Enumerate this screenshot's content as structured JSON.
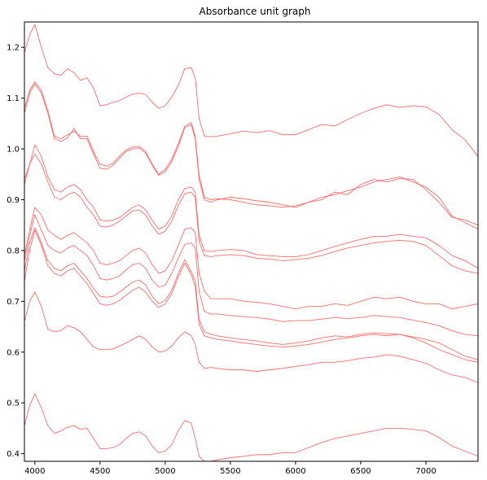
{
  "chart_data": {
    "type": "line",
    "title": "Absorbance unit graph",
    "xlabel": "",
    "ylabel": "",
    "xlim": [
      3920,
      7400
    ],
    "ylim": [
      0.385,
      1.25
    ],
    "grid": false,
    "line_color": "#ff6b6b",
    "x_ticks": [
      4000,
      4500,
      5000,
      5500,
      6000,
      6500,
      7000
    ],
    "x_tick_labels": [
      "4000",
      "4500",
      "5000",
      "5500",
      "6000",
      "6500",
      "7000"
    ],
    "y_ticks": [
      0.4,
      0.5,
      0.6,
      0.7,
      0.8,
      0.9,
      1.0,
      1.1,
      1.2
    ],
    "y_tick_labels": [
      "0.4",
      "0.5",
      "0.6",
      "0.7",
      "0.8",
      "0.9",
      "1.0",
      "1.1",
      "1.2"
    ],
    "x": [
      3920,
      3960,
      4000,
      4050,
      4100,
      4150,
      4200,
      4250,
      4300,
      4350,
      4400,
      4450,
      4500,
      4550,
      4600,
      4650,
      4700,
      4750,
      4800,
      4850,
      4900,
      4950,
      5000,
      5050,
      5100,
      5150,
      5200,
      5230,
      5260,
      5300,
      5350,
      5400,
      5500,
      5600,
      5700,
      5800,
      5900,
      6000,
      6100,
      6200,
      6300,
      6400,
      6500,
      6600,
      6700,
      6800,
      6900,
      7000,
      7100,
      7200,
      7300,
      7400
    ],
    "series": [
      {
        "values": [
          1.19,
          1.225,
          1.245,
          1.2,
          1.16,
          1.148,
          1.145,
          1.158,
          1.15,
          1.135,
          1.14,
          1.12,
          1.085,
          1.087,
          1.092,
          1.095,
          1.102,
          1.108,
          1.11,
          1.107,
          1.092,
          1.08,
          1.085,
          1.102,
          1.125,
          1.158,
          1.16,
          1.14,
          1.06,
          1.025,
          1.024,
          1.025,
          1.03,
          1.035,
          1.032,
          1.036,
          1.028,
          1.028,
          1.038,
          1.048,
          1.045,
          1.058,
          1.07,
          1.08,
          1.087,
          1.082,
          1.085,
          1.083,
          1.068,
          1.038,
          1.018,
          0.985
        ]
      },
      {
        "values": [
          1.07,
          1.11,
          1.128,
          1.11,
          1.07,
          1.02,
          1.015,
          1.022,
          1.04,
          1.02,
          1.02,
          0.99,
          0.962,
          0.96,
          0.968,
          0.982,
          0.995,
          1.0,
          1.002,
          0.992,
          0.968,
          0.948,
          0.955,
          0.975,
          1.005,
          1.042,
          1.048,
          1.02,
          0.94,
          0.9,
          0.895,
          0.9,
          0.905,
          0.902,
          0.898,
          0.895,
          0.89,
          0.885,
          0.895,
          0.905,
          0.91,
          0.918,
          0.925,
          0.935,
          0.94,
          0.945,
          0.935,
          0.925,
          0.905,
          0.868,
          0.855,
          0.842
        ]
      },
      {
        "values": [
          1.08,
          1.115,
          1.132,
          1.115,
          1.075,
          1.025,
          1.02,
          1.028,
          1.035,
          1.025,
          1.025,
          0.995,
          0.97,
          0.966,
          0.972,
          0.986,
          0.998,
          1.004,
          1.005,
          0.995,
          0.97,
          0.95,
          0.96,
          0.98,
          1.01,
          1.045,
          1.052,
          1.025,
          0.948,
          0.905,
          0.9,
          0.902,
          0.9,
          0.895,
          0.89,
          0.888,
          0.885,
          0.888,
          0.895,
          0.9,
          0.915,
          0.91,
          0.93,
          0.94,
          0.935,
          0.942,
          0.94,
          0.92,
          0.895,
          0.865,
          0.86,
          0.85
        ]
      },
      {
        "values": [
          0.93,
          0.97,
          1.008,
          0.985,
          0.945,
          0.92,
          0.915,
          0.925,
          0.93,
          0.92,
          0.9,
          0.885,
          0.86,
          0.858,
          0.86,
          0.865,
          0.875,
          0.885,
          0.89,
          0.88,
          0.86,
          0.842,
          0.848,
          0.868,
          0.9,
          0.922,
          0.925,
          0.915,
          0.83,
          0.8,
          0.798,
          0.8,
          0.802,
          0.8,
          0.792,
          0.79,
          0.788,
          0.788,
          0.792,
          0.8,
          0.808,
          0.815,
          0.822,
          0.828,
          0.828,
          0.832,
          0.828,
          0.825,
          0.81,
          0.79,
          0.78,
          0.765
        ]
      },
      {
        "values": [
          0.94,
          0.97,
          0.99,
          0.97,
          0.935,
          0.905,
          0.9,
          0.91,
          0.915,
          0.905,
          0.885,
          0.87,
          0.848,
          0.846,
          0.85,
          0.858,
          0.868,
          0.878,
          0.88,
          0.87,
          0.848,
          0.832,
          0.838,
          0.858,
          0.888,
          0.912,
          0.915,
          0.905,
          0.818,
          0.79,
          0.788,
          0.79,
          0.792,
          0.79,
          0.785,
          0.783,
          0.78,
          0.782,
          0.785,
          0.79,
          0.798,
          0.805,
          0.81,
          0.815,
          0.818,
          0.82,
          0.818,
          0.81,
          0.79,
          0.77,
          0.76,
          0.755
        ]
      },
      {
        "values": [
          0.79,
          0.84,
          0.885,
          0.87,
          0.84,
          0.83,
          0.822,
          0.83,
          0.835,
          0.825,
          0.815,
          0.8,
          0.775,
          0.772,
          0.775,
          0.78,
          0.79,
          0.8,
          0.805,
          0.795,
          0.772,
          0.755,
          0.76,
          0.78,
          0.81,
          0.842,
          0.845,
          0.835,
          0.755,
          0.72,
          0.705,
          0.705,
          0.705,
          0.7,
          0.698,
          0.695,
          0.69,
          0.685,
          0.69,
          0.69,
          0.695,
          0.692,
          0.7,
          0.708,
          0.705,
          0.708,
          0.7,
          0.695,
          0.695,
          0.685,
          0.69,
          0.695
        ]
      },
      {
        "values": [
          0.78,
          0.83,
          0.87,
          0.84,
          0.81,
          0.8,
          0.795,
          0.805,
          0.81,
          0.8,
          0.79,
          0.77,
          0.745,
          0.742,
          0.745,
          0.75,
          0.762,
          0.772,
          0.775,
          0.765,
          0.742,
          0.728,
          0.732,
          0.755,
          0.785,
          0.812,
          0.815,
          0.805,
          0.72,
          0.68,
          0.675,
          0.675,
          0.672,
          0.67,
          0.668,
          0.665,
          0.66,
          0.662,
          0.662,
          0.665,
          0.668,
          0.666,
          0.668,
          0.672,
          0.67,
          0.668,
          0.663,
          0.658,
          0.652,
          0.642,
          0.635,
          0.632
        ]
      },
      {
        "values": [
          0.76,
          0.815,
          0.845,
          0.815,
          0.78,
          0.765,
          0.76,
          0.77,
          0.775,
          0.76,
          0.745,
          0.725,
          0.71,
          0.708,
          0.71,
          0.718,
          0.728,
          0.738,
          0.742,
          0.732,
          0.71,
          0.695,
          0.702,
          0.722,
          0.755,
          0.782,
          0.758,
          0.74,
          0.665,
          0.64,
          0.635,
          0.632,
          0.628,
          0.625,
          0.622,
          0.618,
          0.615,
          0.618,
          0.622,
          0.628,
          0.632,
          0.63,
          0.635,
          0.638,
          0.636,
          0.635,
          0.63,
          0.625,
          0.618,
          0.605,
          0.592,
          0.585
        ]
      },
      {
        "values": [
          0.74,
          0.8,
          0.84,
          0.81,
          0.77,
          0.755,
          0.75,
          0.76,
          0.765,
          0.75,
          0.735,
          0.715,
          0.695,
          0.692,
          0.695,
          0.702,
          0.712,
          0.722,
          0.728,
          0.718,
          0.7,
          0.688,
          0.695,
          0.715,
          0.748,
          0.775,
          0.752,
          0.73,
          0.655,
          0.632,
          0.628,
          0.625,
          0.622,
          0.618,
          0.615,
          0.612,
          0.61,
          0.612,
          0.615,
          0.62,
          0.625,
          0.628,
          0.632,
          0.635,
          0.632,
          0.635,
          0.628,
          0.618,
          0.605,
          0.595,
          0.585,
          0.58
        ]
      },
      {
        "values": [
          0.66,
          0.7,
          0.718,
          0.69,
          0.645,
          0.64,
          0.642,
          0.652,
          0.648,
          0.64,
          0.625,
          0.61,
          0.605,
          0.605,
          0.606,
          0.612,
          0.618,
          0.625,
          0.632,
          0.625,
          0.61,
          0.6,
          0.602,
          0.612,
          0.628,
          0.64,
          0.632,
          0.615,
          0.58,
          0.568,
          0.57,
          0.568,
          0.565,
          0.565,
          0.562,
          0.565,
          0.568,
          0.572,
          0.575,
          0.58,
          0.58,
          0.583,
          0.588,
          0.59,
          0.595,
          0.592,
          0.585,
          0.578,
          0.565,
          0.555,
          0.55,
          0.54
        ]
      },
      {
        "values": [
          0.455,
          0.495,
          0.518,
          0.49,
          0.455,
          0.44,
          0.445,
          0.452,
          0.455,
          0.448,
          0.45,
          0.43,
          0.41,
          0.41,
          0.412,
          0.418,
          0.43,
          0.44,
          0.443,
          0.435,
          0.415,
          0.402,
          0.405,
          0.418,
          0.445,
          0.465,
          0.46,
          0.43,
          0.395,
          0.385,
          0.385,
          0.388,
          0.392,
          0.395,
          0.398,
          0.398,
          0.402,
          0.402,
          0.412,
          0.422,
          0.43,
          0.435,
          0.44,
          0.445,
          0.45,
          0.45,
          0.448,
          0.445,
          0.432,
          0.415,
          0.405,
          0.395
        ]
      }
    ]
  }
}
